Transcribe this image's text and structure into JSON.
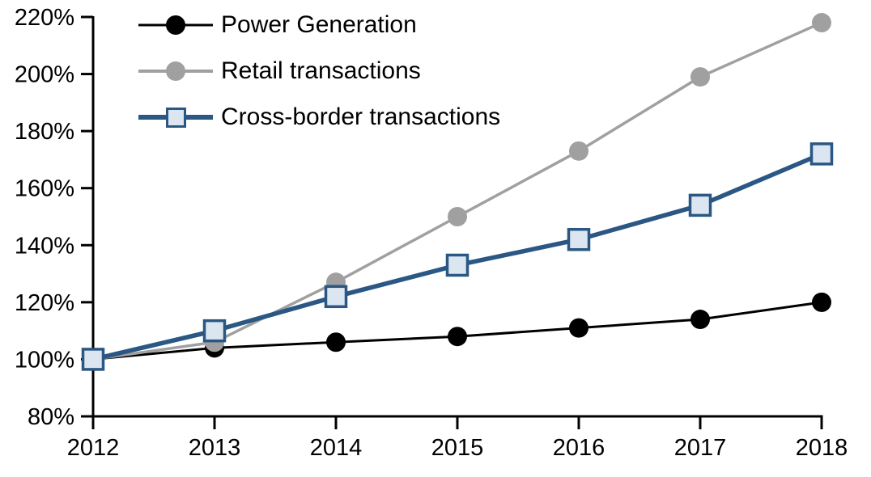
{
  "chart_data": {
    "type": "line",
    "title": "",
    "xlabel": "",
    "ylabel": "",
    "categories": [
      "2012",
      "2013",
      "2014",
      "2015",
      "2016",
      "2017",
      "2018"
    ],
    "series": [
      {
        "name": "Power Generation",
        "values": [
          100,
          104,
          106,
          108,
          111,
          114,
          120
        ],
        "color": "#000000",
        "marker": "circle",
        "marker_fill": "#000000",
        "marker_stroke": "#000000",
        "line_width": 3
      },
      {
        "name": "Retail transactions",
        "values": [
          100,
          106,
          127,
          150,
          173,
          199,
          218
        ],
        "color": "#A0A0A0",
        "marker": "circle",
        "marker_fill": "#A0A0A0",
        "marker_stroke": "#A0A0A0",
        "line_width": 3.5
      },
      {
        "name": "Cross-border transactions",
        "values": [
          100,
          110,
          122,
          133,
          142,
          154,
          172
        ],
        "color": "#2A5783",
        "marker": "square",
        "marker_fill": "#DCE6F1",
        "marker_stroke": "#2A5783",
        "line_width": 5.5
      }
    ],
    "ylim": [
      80,
      220
    ],
    "y_tick_values": [
      80,
      100,
      120,
      140,
      160,
      180,
      200,
      220
    ],
    "y_tick_labels": [
      "80%",
      "100%",
      "120%",
      "140%",
      "160%",
      "180%",
      "200%",
      "220%"
    ],
    "x_tick_labels": [
      "2012",
      "2013",
      "2014",
      "2015",
      "2016",
      "2017",
      "2018"
    ],
    "grid": false,
    "legend_position": "top-left",
    "axis_color": "#000000"
  }
}
